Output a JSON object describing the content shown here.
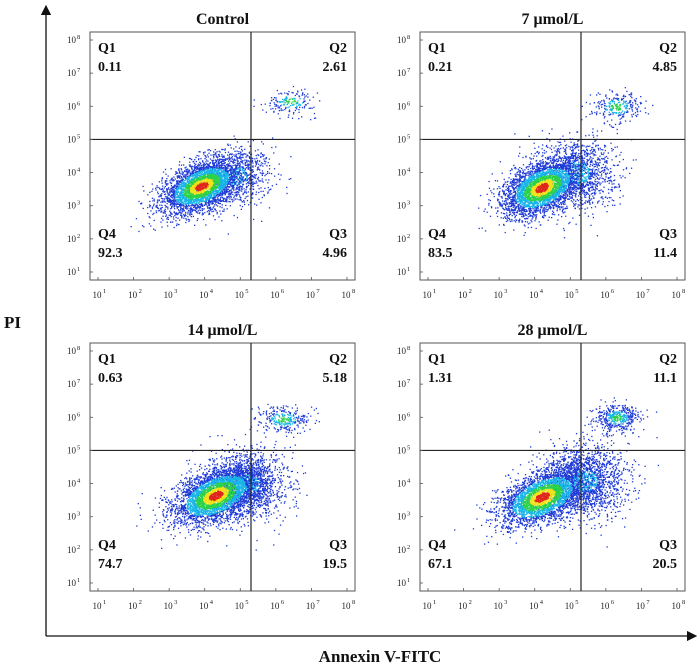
{
  "figure": {
    "y_axis_title": "PI",
    "x_axis_title": "Annexin  V-FITC"
  },
  "colors": {
    "density_low": "#1f3bd6",
    "density_mid_low": "#18b5e8",
    "density_mid": "#2bd14a",
    "density_high": "#f2e21b",
    "density_peak": "#e0261b",
    "gate_lines": "#222222",
    "frame": "#555555"
  },
  "chart_data": [
    {
      "type": "scatter",
      "title": "Control",
      "xlabel": "",
      "ylabel": "",
      "x_ticks": [
        "10",
        "10",
        "10",
        "10",
        "10",
        "10",
        "10",
        "10"
      ],
      "x_tick_exponents": [
        "1",
        "2",
        "3",
        "4",
        "5",
        "6",
        "7",
        "8"
      ],
      "y_ticks": [
        "10",
        "10",
        "10",
        "10",
        "10",
        "10",
        "10",
        "10"
      ],
      "y_tick_exponents": [
        "1",
        "2",
        "3",
        "4",
        "5",
        "6",
        "7",
        "8"
      ],
      "x_scale": "log",
      "y_scale": "log",
      "xlim": [
        10,
        100000000
      ],
      "ylim": [
        10,
        100000000
      ],
      "gate_x": 200000,
      "gate_y": 100000,
      "quadrants": [
        {
          "name": "Q1",
          "value": "0.11",
          "position": "top-left"
        },
        {
          "name": "Q2",
          "value": "2.61",
          "position": "top-right"
        },
        {
          "name": "Q3",
          "value": "4.96",
          "position": "bottom-right"
        },
        {
          "name": "Q4",
          "value": "92.3",
          "position": "bottom-left"
        }
      ]
    },
    {
      "type": "scatter",
      "title": "7 μmol/L",
      "xlabel": "",
      "ylabel": "",
      "x_ticks": [
        "10",
        "10",
        "10",
        "10",
        "10",
        "10",
        "10",
        "10"
      ],
      "x_tick_exponents": [
        "1",
        "2",
        "3",
        "4",
        "5",
        "6",
        "7",
        "8"
      ],
      "y_ticks": [
        "10",
        "10",
        "10",
        "10",
        "10",
        "10",
        "10",
        "10"
      ],
      "y_tick_exponents": [
        "1",
        "2",
        "3",
        "4",
        "5",
        "6",
        "7",
        "8"
      ],
      "x_scale": "log",
      "y_scale": "log",
      "xlim": [
        10,
        100000000
      ],
      "ylim": [
        10,
        100000000
      ],
      "gate_x": 200000,
      "gate_y": 100000,
      "quadrants": [
        {
          "name": "Q1",
          "value": "0.21",
          "position": "top-left"
        },
        {
          "name": "Q2",
          "value": "4.85",
          "position": "top-right"
        },
        {
          "name": "Q3",
          "value": "11.4",
          "position": "bottom-right"
        },
        {
          "name": "Q4",
          "value": "83.5",
          "position": "bottom-left"
        }
      ]
    },
    {
      "type": "scatter",
      "title": "14 μmol/L",
      "xlabel": "",
      "ylabel": "",
      "x_ticks": [
        "10",
        "10",
        "10",
        "10",
        "10",
        "10",
        "10",
        "10"
      ],
      "x_tick_exponents": [
        "1",
        "2",
        "3",
        "4",
        "5",
        "6",
        "7",
        "8"
      ],
      "y_ticks": [
        "10",
        "10",
        "10",
        "10",
        "10",
        "10",
        "10",
        "10"
      ],
      "y_tick_exponents": [
        "1",
        "2",
        "3",
        "4",
        "5",
        "6",
        "7",
        "8"
      ],
      "x_scale": "log",
      "y_scale": "log",
      "xlim": [
        10,
        100000000
      ],
      "ylim": [
        10,
        100000000
      ],
      "gate_x": 200000,
      "gate_y": 100000,
      "quadrants": [
        {
          "name": "Q1",
          "value": "0.63",
          "position": "top-left"
        },
        {
          "name": "Q2",
          "value": "5.18",
          "position": "top-right"
        },
        {
          "name": "Q3",
          "value": "19.5",
          "position": "bottom-right"
        },
        {
          "name": "Q4",
          "value": "74.7",
          "position": "bottom-left"
        }
      ]
    },
    {
      "type": "scatter",
      "title": "28 μmol/L",
      "xlabel": "",
      "ylabel": "",
      "x_ticks": [
        "10",
        "10",
        "10",
        "10",
        "10",
        "10",
        "10",
        "10"
      ],
      "x_tick_exponents": [
        "1",
        "2",
        "3",
        "4",
        "5",
        "6",
        "7",
        "8"
      ],
      "y_ticks": [
        "10",
        "10",
        "10",
        "10",
        "10",
        "10",
        "10",
        "10"
      ],
      "y_tick_exponents": [
        "1",
        "2",
        "3",
        "4",
        "5",
        "6",
        "7",
        "8"
      ],
      "x_scale": "log",
      "y_scale": "log",
      "xlim": [
        10,
        100000000
      ],
      "ylim": [
        10,
        100000000
      ],
      "gate_x": 200000,
      "gate_y": 100000,
      "quadrants": [
        {
          "name": "Q1",
          "value": "1.31",
          "position": "top-left"
        },
        {
          "name": "Q2",
          "value": "11.1",
          "position": "top-right"
        },
        {
          "name": "Q3",
          "value": "20.5",
          "position": "bottom-right"
        },
        {
          "name": "Q4",
          "value": "67.1",
          "position": "bottom-left"
        }
      ]
    }
  ]
}
